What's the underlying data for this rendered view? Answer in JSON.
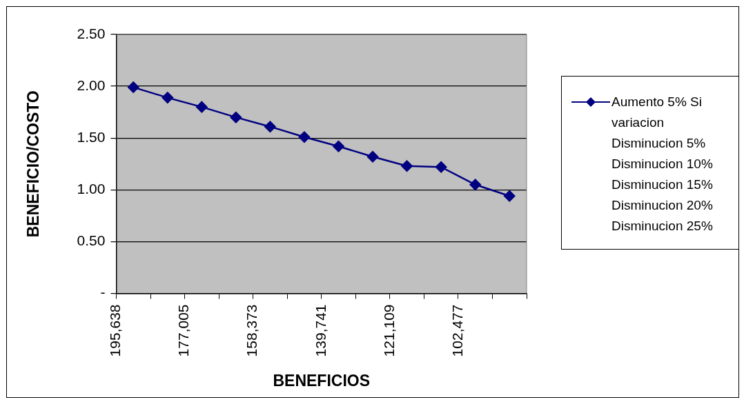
{
  "chart_data": {
    "type": "line",
    "xlabel": "BENEFICIOS",
    "ylabel": "BENEFICIO/COSTO",
    "x": [
      190980,
      181664,
      172348,
      163032,
      153716,
      144400,
      135084,
      125768,
      116452,
      107136,
      97820,
      88504
    ],
    "series": [
      {
        "name": "Aumento 5% Si variacion Disminucion 5% Disminucion 10% Disminucion 15% Disminucion 20% Disminucion 25%",
        "color": "#000080",
        "values": [
          1.99,
          1.89,
          1.8,
          1.7,
          1.61,
          1.51,
          1.42,
          1.32,
          1.23,
          1.22,
          1.05,
          0.94
        ]
      }
    ],
    "xlim": [
      195638,
      83845
    ],
    "xticks": [
      {
        "value": 195638,
        "label": "195,638"
      },
      {
        "value": 186322,
        "label": null
      },
      {
        "value": 177005,
        "label": "177,005"
      },
      {
        "value": 167689,
        "label": null
      },
      {
        "value": 158373,
        "label": "158,373"
      },
      {
        "value": 149057,
        "label": null
      },
      {
        "value": 139741,
        "label": "139,741"
      },
      {
        "value": 130425,
        "label": null
      },
      {
        "value": 121109,
        "label": "121,109"
      },
      {
        "value": 111793,
        "label": null
      },
      {
        "value": 102477,
        "label": "102,477"
      },
      {
        "value": 93161,
        "label": null
      },
      {
        "value": 83845,
        "label": null
      }
    ],
    "ylim": [
      0,
      2.5
    ],
    "yticks": [
      {
        "value": 0,
        "label": "-"
      },
      {
        "value": 0.5,
        "label": "0.50"
      },
      {
        "value": 1,
        "label": "1.00"
      },
      {
        "value": 1.5,
        "label": "1.50"
      },
      {
        "value": 2,
        "label": "2.00"
      },
      {
        "value": 2.5,
        "label": "2.50"
      }
    ],
    "grid": "y",
    "legend": "right",
    "marker": "diamond",
    "line_style": "solid"
  }
}
